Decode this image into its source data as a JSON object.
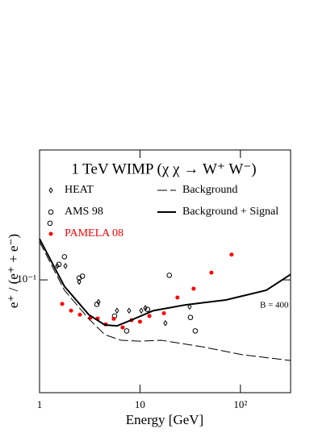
{
  "chart_data": {
    "type": "scatter",
    "title": "1 TeV WIMP (χ χ → W⁺ W⁻)",
    "x_label": "Energy [GeV]",
    "y_label": "e⁺ / (e⁺ + e⁻)",
    "annotation": "B = 400",
    "xscale": "log",
    "yscale": "log",
    "xlim": [
      1,
      316
    ],
    "ylim": [
      0.03,
      0.4
    ],
    "xticks": [
      1,
      10,
      {
        "value": 100,
        "label": "10²"
      }
    ],
    "yticks": [
      {
        "value": 0.1,
        "label": "10⁻¹"
      }
    ],
    "series": [
      {
        "name": "HEAT",
        "color": "#000000",
        "marker": "diamond",
        "x": [
          1.5,
          1.81,
          2.48,
          3.86,
          5.9,
          7.79,
          10.3,
          11.3,
          17.9,
          31.2
        ],
        "values": [
          0.116,
          0.116,
          0.098,
          0.079,
          0.072,
          0.072,
          0.072,
          0.074,
          0.063,
          0.075
        ]
      },
      {
        "name": "AMS 98",
        "color": "#000000",
        "marker": "circle",
        "x": [
          1.27,
          1.56,
          1.77,
          2.48,
          2.67,
          3.72,
          5.58,
          7.37,
          11.9,
          19.6,
          31.8,
          35.5
        ],
        "values": [
          0.183,
          0.118,
          0.128,
          0.102,
          0.104,
          0.077,
          0.068,
          0.058,
          0.073,
          0.105,
          0.067,
          0.058
        ]
      },
      {
        "name": "PAMELA 08",
        "color": "#ff0000",
        "marker": "dot",
        "x": [
          1.68,
          2.06,
          2.52,
          3.21,
          3.79,
          4.56,
          5.48,
          6.72,
          8.24,
          10,
          12.4,
          17.3,
          23.6,
          34.2,
          51.4,
          81.6
        ],
        "values": [
          0.0774,
          0.072,
          0.069,
          0.0668,
          0.0662,
          0.0622,
          0.066,
          0.0602,
          0.065,
          0.064,
          0.068,
          0.07,
          0.0828,
          0.091,
          0.108,
          0.131
        ]
      },
      {
        "name": "Background",
        "color": "#000000",
        "marker": "dashed-line",
        "x": [
          1,
          1.77,
          3.09,
          4.47,
          6.48,
          10,
          16.3,
          41.2,
          104,
          316
        ],
        "values": [
          0.15,
          0.0895,
          0.066,
          0.0557,
          0.0525,
          0.052,
          0.0525,
          0.049,
          0.045,
          0.0423
        ]
      },
      {
        "name": "Background + Signal",
        "color": "#000000",
        "marker": "solid-line",
        "x": [
          1,
          1.77,
          3.09,
          4.47,
          5.9,
          7.79,
          13.6,
          28.4,
          71.7,
          181,
          316
        ],
        "values": [
          0.155,
          0.0933,
          0.069,
          0.0618,
          0.0612,
          0.0645,
          0.072,
          0.0766,
          0.0807,
          0.0895,
          0.106
        ]
      }
    ]
  }
}
